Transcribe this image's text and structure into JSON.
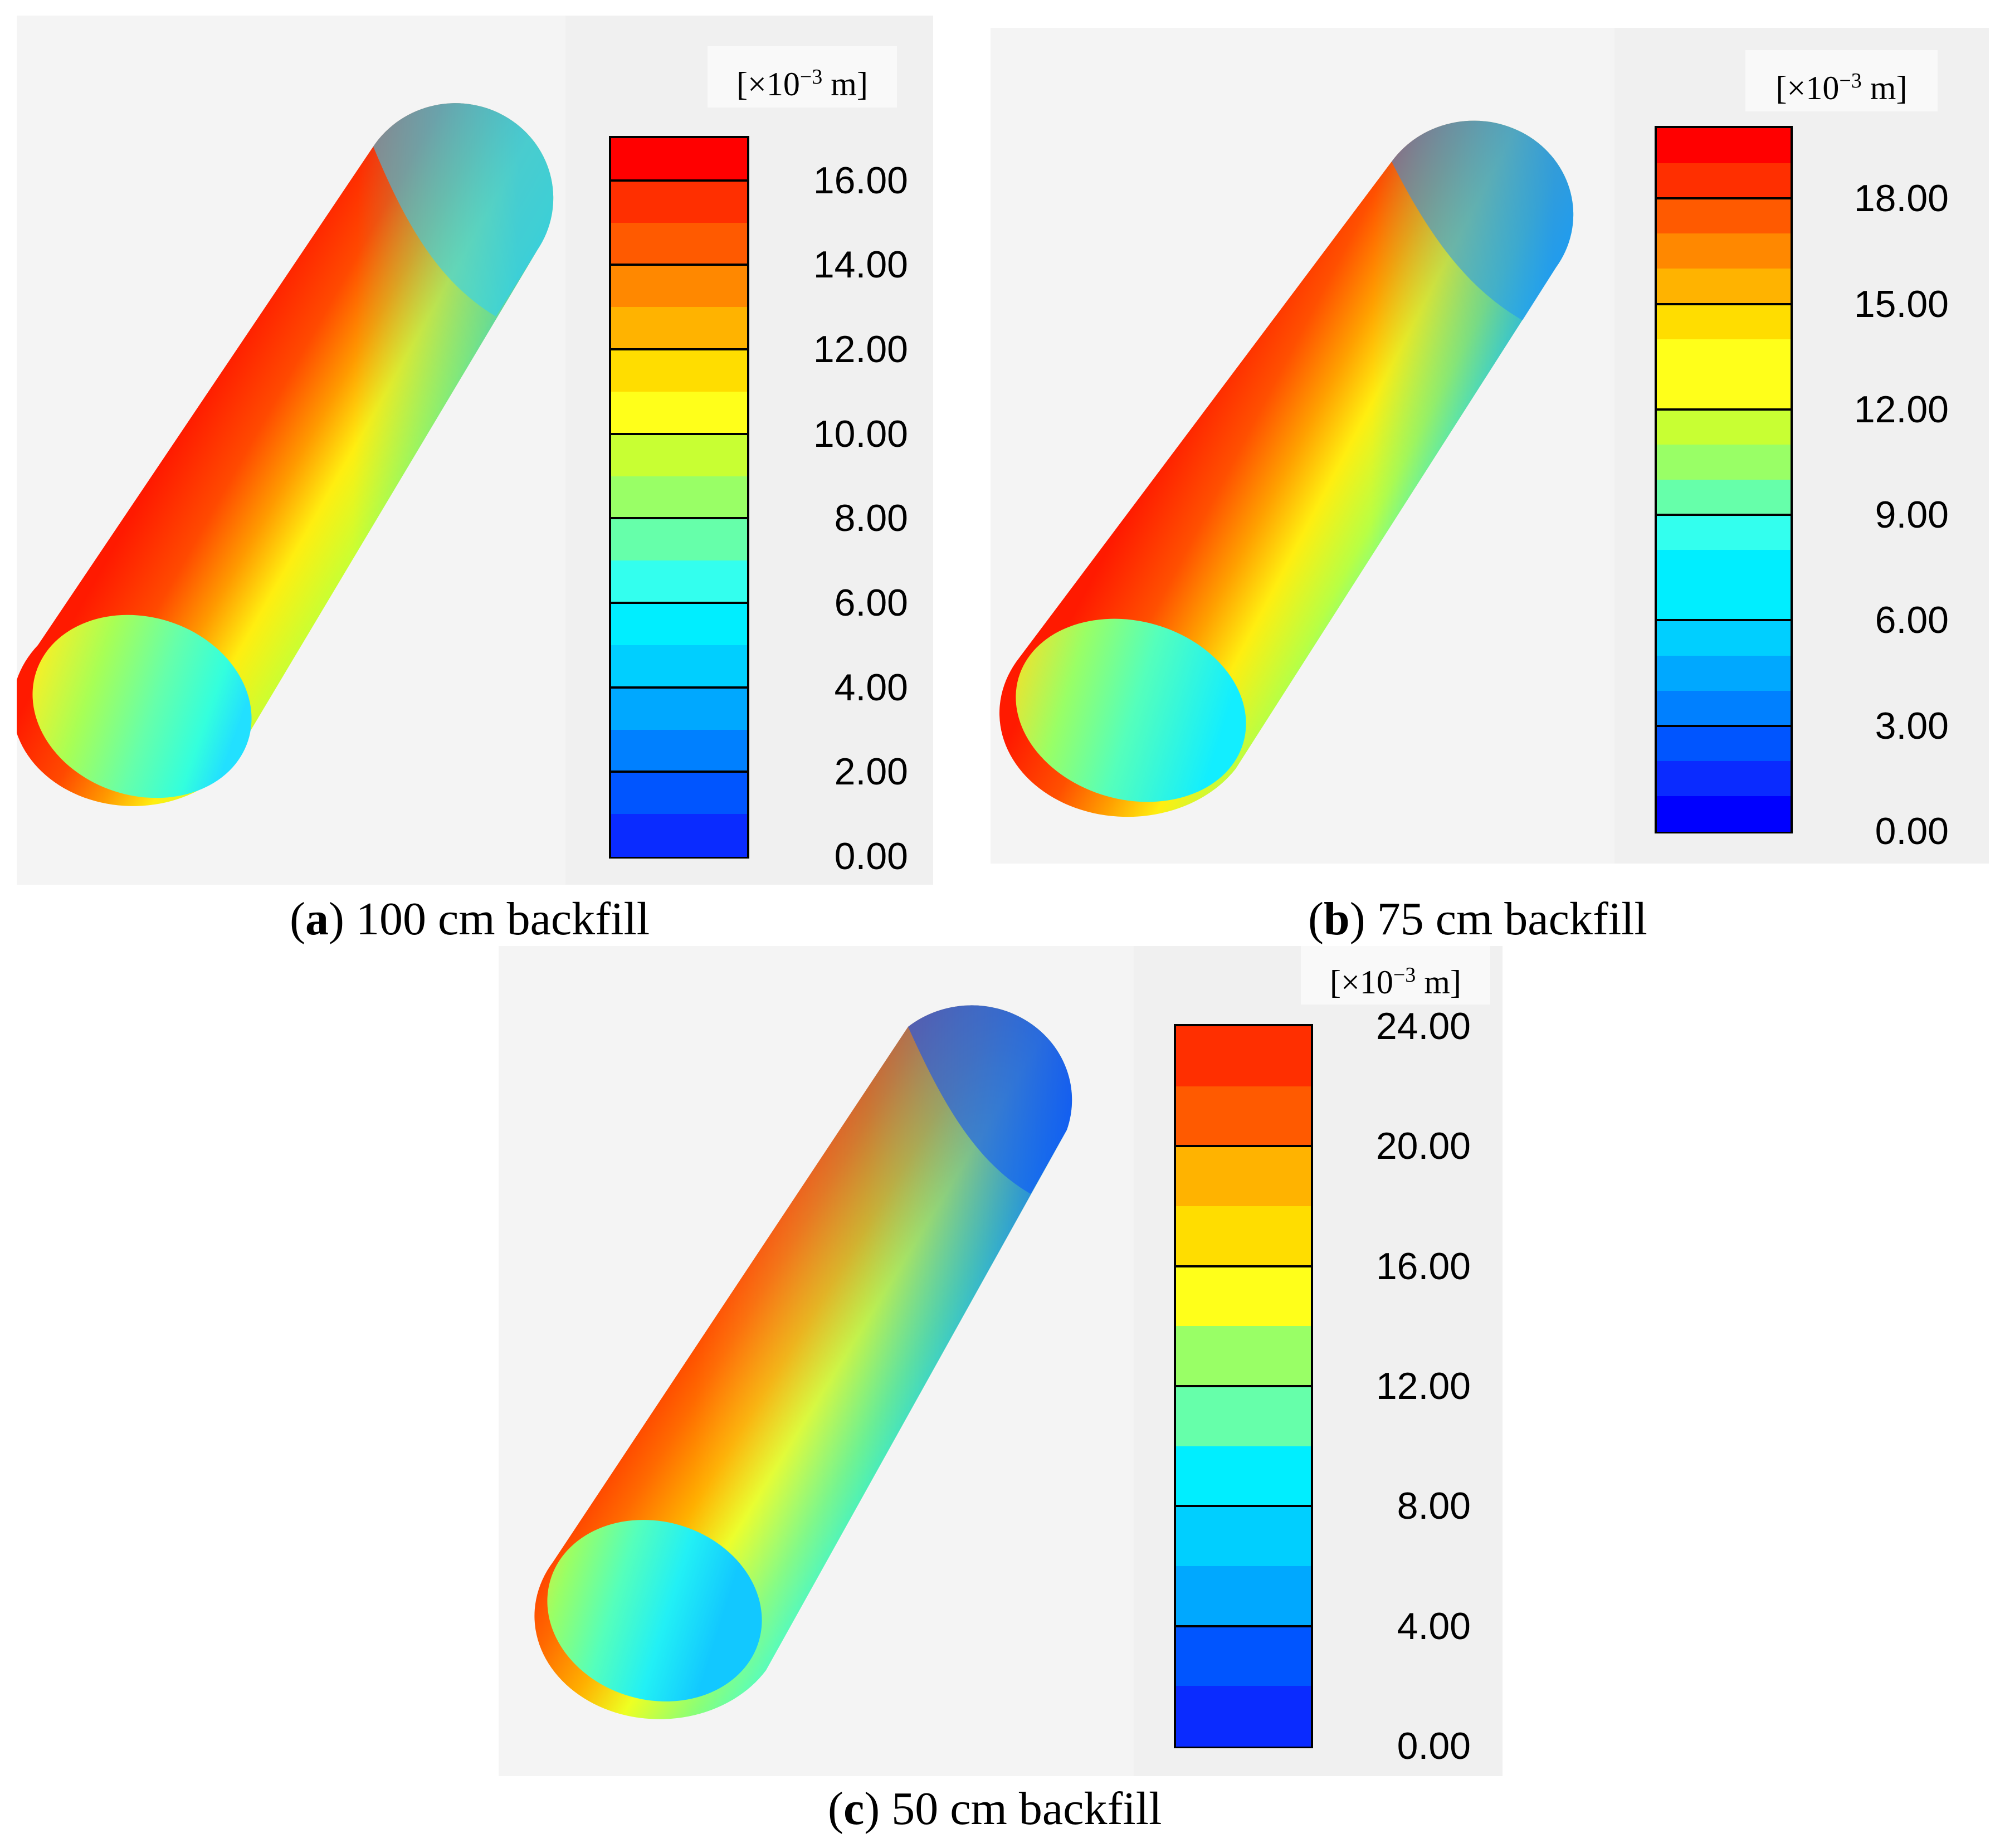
{
  "figures": [
    {
      "id": "a",
      "letter": "a",
      "caption": "100 cm backfill",
      "unit": {
        "prefix": "[×10",
        "exp": "−3",
        "suffix": " m]"
      },
      "ticks": [
        "16.00",
        "14.00",
        "12.00",
        "10.00",
        "8.00",
        "6.00",
        "4.00",
        "2.00",
        "0.00"
      ],
      "scale_min": 0,
      "scale_max": 17,
      "major_bounds": [
        16,
        14,
        12,
        10,
        8,
        6,
        4,
        2
      ]
    },
    {
      "id": "b",
      "letter": "b",
      "caption": "75 cm backfill",
      "unit": {
        "prefix": "[×10",
        "exp": "−3",
        "suffix": " m]"
      },
      "ticks": [
        "18.00",
        "15.00",
        "12.00",
        "9.00",
        "6.00",
        "3.00",
        "0.00"
      ],
      "scale_min": 0,
      "scale_max": 20,
      "major_bounds": [
        18,
        15,
        12,
        9,
        6,
        3
      ]
    },
    {
      "id": "c",
      "letter": "c",
      "caption": "50 cm backfill",
      "unit": {
        "prefix": "[×10",
        "exp": "−3",
        "suffix": " m]"
      },
      "ticks": [
        "24.00",
        "20.00",
        "16.00",
        "12.00",
        "8.00",
        "4.00",
        "0.00"
      ],
      "scale_min": 0,
      "scale_max": 24,
      "major_bounds": [
        20,
        16,
        12,
        8,
        4
      ]
    }
  ],
  "colors": {
    "jet": [
      "#0000ff",
      "#0a2bff",
      "#0055ff",
      "#0080ff",
      "#00a8ff",
      "#00cfff",
      "#00eeff",
      "#33ffee",
      "#66ffaa",
      "#99ff66",
      "#c8ff33",
      "#ffff1a",
      "#ffdd00",
      "#ffb300",
      "#ff8800",
      "#ff5a00",
      "#ff2f00",
      "#ff0000"
    ]
  }
}
